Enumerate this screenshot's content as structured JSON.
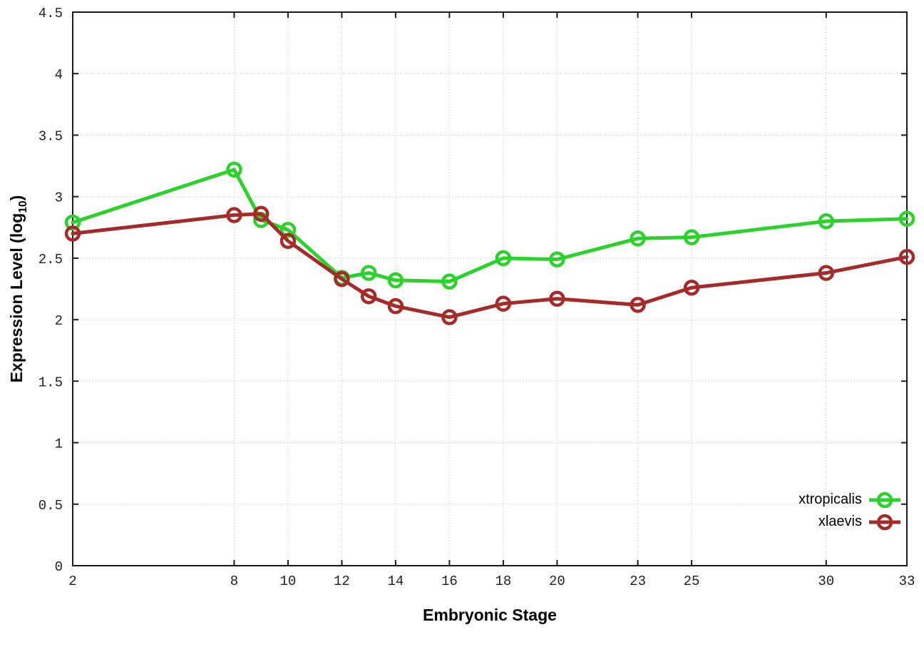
{
  "chart_data": {
    "type": "line",
    "xlabel": "Embryonic Stage",
    "ylabel": "Expression Level (log10)",
    "ylabel_text": "Expression Level (log",
    "ylabel_sub": "10",
    "ylabel_suffix": ")",
    "x": [
      2,
      8,
      9,
      10,
      12,
      13,
      14,
      16,
      18,
      20,
      23,
      25,
      30,
      33
    ],
    "series": [
      {
        "name": "xtropicalis",
        "color": "#2bd22b",
        "values": [
          2.79,
          3.22,
          2.81,
          2.73,
          2.34,
          2.38,
          2.32,
          2.31,
          2.5,
          2.49,
          2.66,
          2.67,
          2.8,
          2.82
        ]
      },
      {
        "name": "xlaevis",
        "color": "#a52a2a",
        "values": [
          2.7,
          2.85,
          2.86,
          2.64,
          2.33,
          2.19,
          2.11,
          2.02,
          2.13,
          2.17,
          2.12,
          2.26,
          2.38,
          2.51
        ]
      }
    ],
    "x_ticks": [
      2,
      8,
      10,
      12,
      14,
      16,
      18,
      20,
      23,
      25,
      30,
      33
    ],
    "y_ticks": [
      0,
      0.5,
      1,
      1.5,
      2,
      2.5,
      3,
      3.5,
      4,
      4.5
    ],
    "xlim": [
      2,
      33
    ],
    "ylim": [
      0,
      4.5
    ],
    "grid": true,
    "legend_position": "inside-bottom-right"
  },
  "colors": {
    "background": "#ffffff",
    "grid": "#bdbdbd",
    "axis": "#1a1a1a",
    "tick_text": "#1f1f1f",
    "series_green": "#2bd22b",
    "series_darkred": "#a52a2a"
  }
}
